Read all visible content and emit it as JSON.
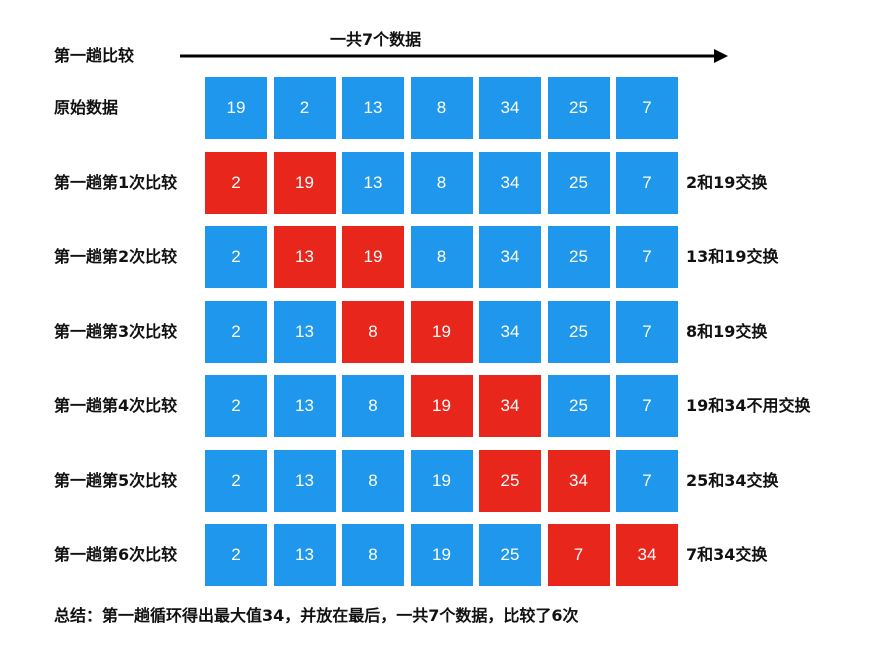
{
  "header": {
    "pass_label": "第一趟比较",
    "total_label": "一共7个数据"
  },
  "rows": [
    {
      "label": "原始数据",
      "values": [
        "19",
        "2",
        "13",
        "8",
        "34",
        "25",
        "7"
      ],
      "highlight": [],
      "note": ""
    },
    {
      "label": "第一趟第1次比较",
      "values": [
        "2",
        "19",
        "13",
        "8",
        "34",
        "25",
        "7"
      ],
      "highlight": [
        0,
        1
      ],
      "note": "2和19交换"
    },
    {
      "label": "第一趟第2次比较",
      "values": [
        "2",
        "13",
        "19",
        "8",
        "34",
        "25",
        "7"
      ],
      "highlight": [
        1,
        2
      ],
      "note": "13和19交换"
    },
    {
      "label": "第一趟第3次比较",
      "values": [
        "2",
        "13",
        "8",
        "19",
        "34",
        "25",
        "7"
      ],
      "highlight": [
        2,
        3
      ],
      "note": "8和19交换"
    },
    {
      "label": "第一趟第4次比较",
      "values": [
        "2",
        "13",
        "8",
        "19",
        "34",
        "25",
        "7"
      ],
      "highlight": [
        3,
        4
      ],
      "note": "19和34不用交换"
    },
    {
      "label": "第一趟第5次比较",
      "values": [
        "2",
        "13",
        "8",
        "19",
        "25",
        "34",
        "7"
      ],
      "highlight": [
        4,
        5
      ],
      "note": "25和34交换"
    },
    {
      "label": "第一趟第6次比较",
      "values": [
        "2",
        "13",
        "8",
        "19",
        "25",
        "7",
        "34"
      ],
      "highlight": [
        5,
        6
      ],
      "note": "7和34交换"
    }
  ],
  "summary": "总结：第一趟循环得出最大值34，并放在最后，一共7个数据，比较了6次",
  "colors": {
    "cell_default": "#1e97ec",
    "cell_highlight": "#e8261c",
    "arrow": "#000000"
  }
}
